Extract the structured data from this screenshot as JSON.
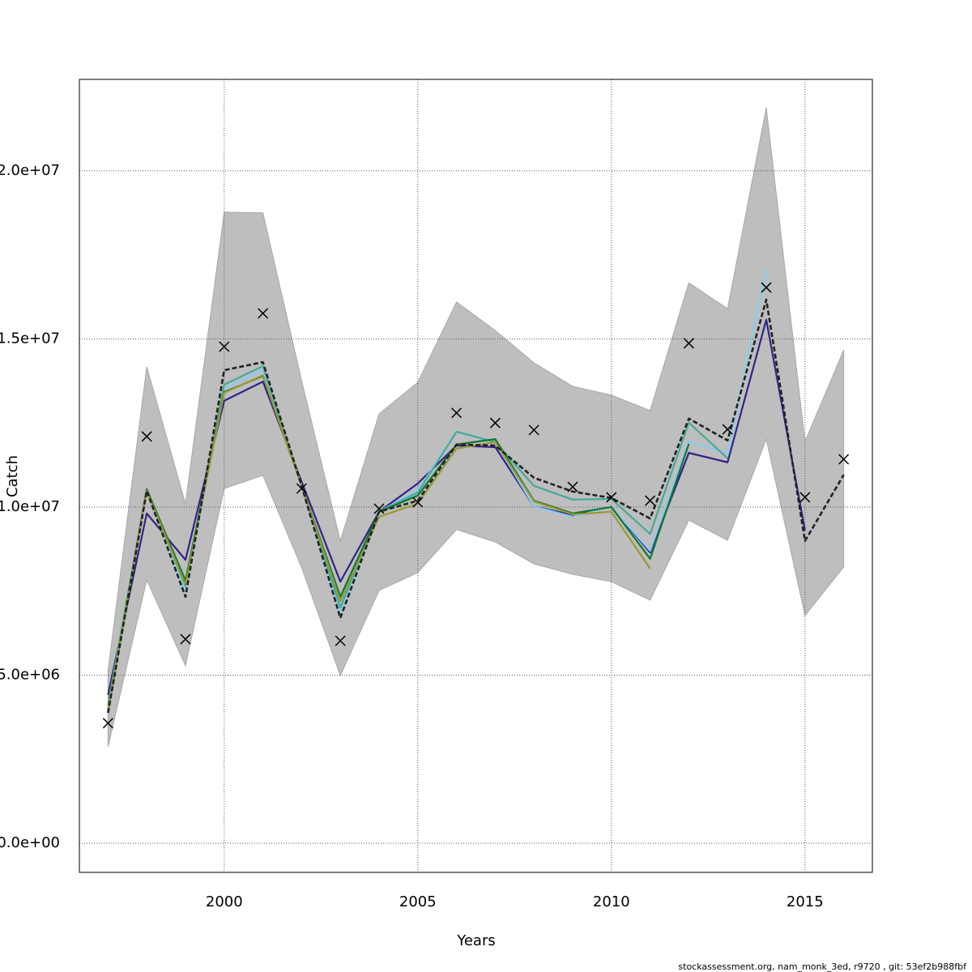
{
  "chart_data": {
    "type": "line",
    "xlabel": "Years",
    "ylabel": "Catch",
    "footer": "stockassessment.org, nam_monk_3ed, r9720 , git: 53ef2b988fbf",
    "x": [
      1997,
      1998,
      1999,
      2000,
      2001,
      2002,
      2003,
      2004,
      2005,
      2006,
      2007,
      2008,
      2009,
      2010,
      2011,
      2012,
      2013,
      2014,
      2015,
      2016
    ],
    "xlim": [
      1996.26,
      2016.74
    ],
    "xticks": [
      2000,
      2005,
      2010,
      2015
    ],
    "ylim": [
      -867000,
      22720000
    ],
    "yticks": [
      {
        "value": 0,
        "label": "0.0e+00"
      },
      {
        "value": 5000000,
        "label": "5.0e+06"
      },
      {
        "value": 10000000,
        "label": "1.0e+07"
      },
      {
        "value": 15000000,
        "label": "1.5e+07"
      },
      {
        "value": 20000000,
        "label": "2.0e+07"
      }
    ],
    "grid": true,
    "band": {
      "color": "#bebebe",
      "upper": [
        5130000,
        14170000,
        10100000,
        18770000,
        18750000,
        13760000,
        8990000,
        12770000,
        13710000,
        16100000,
        15250000,
        14290000,
        13590000,
        13330000,
        12870000,
        16670000,
        15900000,
        21880000,
        11950000,
        14670000
      ],
      "lower": [
        2870000,
        7830000,
        5280000,
        10550000,
        10940000,
        8200000,
        4990000,
        7520000,
        8050000,
        9330000,
        8960000,
        8310000,
        8000000,
        7780000,
        7230000,
        9610000,
        9010000,
        12020000,
        6770000,
        8220000
      ]
    },
    "estimate": {
      "color": "#222222",
      "values": [
        3880000,
        10480000,
        7330000,
        14070000,
        14310000,
        10630000,
        6700000,
        9860000,
        10190000,
        11860000,
        11830000,
        10870000,
        10460000,
        10270000,
        9660000,
        12630000,
        11980000,
        16170000,
        8990000,
        10960000
      ]
    },
    "series": [
      {
        "color": "#332288",
        "values": [
          4410000,
          9810000,
          8430000,
          13160000,
          13730000,
          10750000,
          7780000,
          9860000,
          10700000,
          11830000,
          11780000,
          10020000,
          9760000,
          10000000,
          8650000,
          11610000,
          11330000,
          15570000,
          9300000,
          null
        ]
      },
      {
        "color": "#88ccee",
        "values": [
          4000000,
          10480000,
          7470000,
          13520000,
          14070000,
          10630000,
          6820000,
          9860000,
          10500000,
          12240000,
          11950000,
          10020000,
          9710000,
          10000000,
          8700000,
          11950000,
          11590000,
          17060000,
          null,
          null
        ]
      },
      {
        "color": "#44aa99",
        "values": [
          4120000,
          10530000,
          7640000,
          13640000,
          14190000,
          10630000,
          7010000,
          9860000,
          10430000,
          12240000,
          11930000,
          10630000,
          10220000,
          10240000,
          9200000,
          12510000,
          11450000,
          null,
          null,
          null
        ]
      },
      {
        "color": "#117733",
        "values": [
          3930000,
          10530000,
          7810000,
          13420000,
          13900000,
          10630000,
          7330000,
          9860000,
          10340000,
          11860000,
          12020000,
          10190000,
          9810000,
          10000000,
          8460000,
          11880000,
          null,
          null,
          null,
          null
        ]
      },
      {
        "color": "#999933",
        "values": [
          3980000,
          10480000,
          7690000,
          13400000,
          13920000,
          10630000,
          7200000,
          9710000,
          10100000,
          11740000,
          11930000,
          10170000,
          9780000,
          9860000,
          8170000,
          null,
          null,
          null,
          null,
          null
        ]
      }
    ],
    "observed": {
      "color": "#000000",
      "values": [
        3570000,
        12100000,
        6070000,
        14770000,
        15760000,
        10550000,
        6020000,
        9950000,
        10140000,
        12800000,
        12500000,
        12290000,
        10600000,
        10290000,
        10190000,
        14870000,
        12310000,
        16530000,
        10290000,
        11420000
      ]
    }
  }
}
